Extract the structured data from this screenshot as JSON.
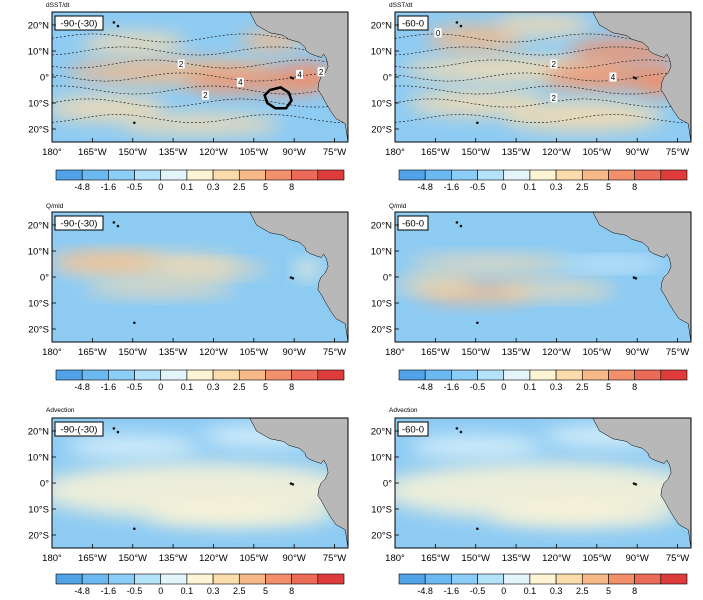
{
  "figure": {
    "colorbar": {
      "levels": [
        "-4.8",
        "-1.6",
        "-0.5",
        "0",
        "0.1",
        "0.3",
        "2.5",
        "5",
        "8"
      ],
      "colors": [
        "#4fa3e6",
        "#6cb8f0",
        "#8ccdf7",
        "#b4e2f9",
        "#e3f5fb",
        "#fdf4d6",
        "#fadcad",
        "#f6b987",
        "#f1906a",
        "#ec6a58",
        "#de3c3c"
      ]
    },
    "land_color": "#b8b8b8",
    "ocean_base_color": "#8ecbf3"
  },
  "chart_data": [
    {
      "type": "heatmap",
      "variable": "dSST/dt",
      "label": "-90-(-30)",
      "x_ticks": [
        "180°",
        "165°W",
        "150°W",
        "135°W",
        "120°W",
        "105°W",
        "90°W",
        "75°W"
      ],
      "y_ticks": [
        "20°N",
        "10°N",
        "0°",
        "10°S",
        "20°S"
      ],
      "x_range": [
        -180,
        -70
      ],
      "y_range": [
        -25,
        25
      ],
      "contour_labels": [
        {
          "value": "2",
          "lon": -132,
          "lat": 5
        },
        {
          "value": "4",
          "lon": -110,
          "lat": -2
        },
        {
          "value": "4",
          "lon": -88,
          "lat": 1
        },
        {
          "value": "2",
          "lon": -80,
          "lat": 2
        },
        {
          "value": "2",
          "lon": -123,
          "lat": -7
        }
      ],
      "highlight_region": "black outlined region near 95°W, 8°S"
    },
    {
      "type": "heatmap",
      "variable": "dSST/dt",
      "label": "-60-0",
      "x_ticks": [
        "180°",
        "165°W",
        "150°W",
        "135°W",
        "120°W",
        "105°W",
        "90°W",
        "75°W"
      ],
      "y_ticks": [
        "20°N",
        "10°N",
        "0°",
        "10°S",
        "20°S"
      ],
      "x_range": [
        -180,
        -70
      ],
      "y_range": [
        -25,
        25
      ],
      "contour_labels": [
        {
          "value": "0",
          "lon": -164,
          "lat": 17
        },
        {
          "value": "2",
          "lon": -121,
          "lat": 5
        },
        {
          "value": "4",
          "lon": -99,
          "lat": 0
        },
        {
          "value": "2",
          "lon": -121,
          "lat": -8
        }
      ]
    },
    {
      "type": "heatmap",
      "variable": "Q/mld",
      "label": "-90-(-30)",
      "x_ticks": [
        "180°",
        "165°W",
        "150°W",
        "135°W",
        "120°W",
        "105°W",
        "90°W",
        "75°W"
      ],
      "y_ticks": [
        "20°N",
        "10°N",
        "0°",
        "10°S",
        "20°S"
      ],
      "x_range": [
        -180,
        -70
      ],
      "y_range": [
        -25,
        25
      ]
    },
    {
      "type": "heatmap",
      "variable": "Q/mld",
      "label": "-60-0",
      "x_ticks": [
        "180°",
        "165°W",
        "150°W",
        "135°W",
        "120°W",
        "105°W",
        "90°W",
        "75°W"
      ],
      "y_ticks": [
        "20°N",
        "10°N",
        "0°",
        "10°S",
        "20°S"
      ],
      "x_range": [
        -180,
        -70
      ],
      "y_range": [
        -25,
        25
      ]
    },
    {
      "type": "heatmap",
      "variable": "Advection",
      "label": "-90-(-30)",
      "x_ticks": [
        "180°",
        "165°W",
        "150°W",
        "135°W",
        "120°W",
        "105°W",
        "90°W",
        "75°W"
      ],
      "y_ticks": [
        "20°N",
        "10°N",
        "0°",
        "10°S",
        "20°S"
      ],
      "x_range": [
        -180,
        -70
      ],
      "y_range": [
        -25,
        25
      ]
    },
    {
      "type": "heatmap",
      "variable": "Advection",
      "label": "-60-0",
      "x_ticks": [
        "180°",
        "165°W",
        "150°W",
        "135°W",
        "120°W",
        "105°W",
        "90°W",
        "75°W"
      ],
      "y_ticks": [
        "20°N",
        "10°N",
        "0°",
        "10°S",
        "20°S"
      ],
      "x_range": [
        -180,
        -70
      ],
      "y_range": [
        -25,
        25
      ]
    }
  ]
}
